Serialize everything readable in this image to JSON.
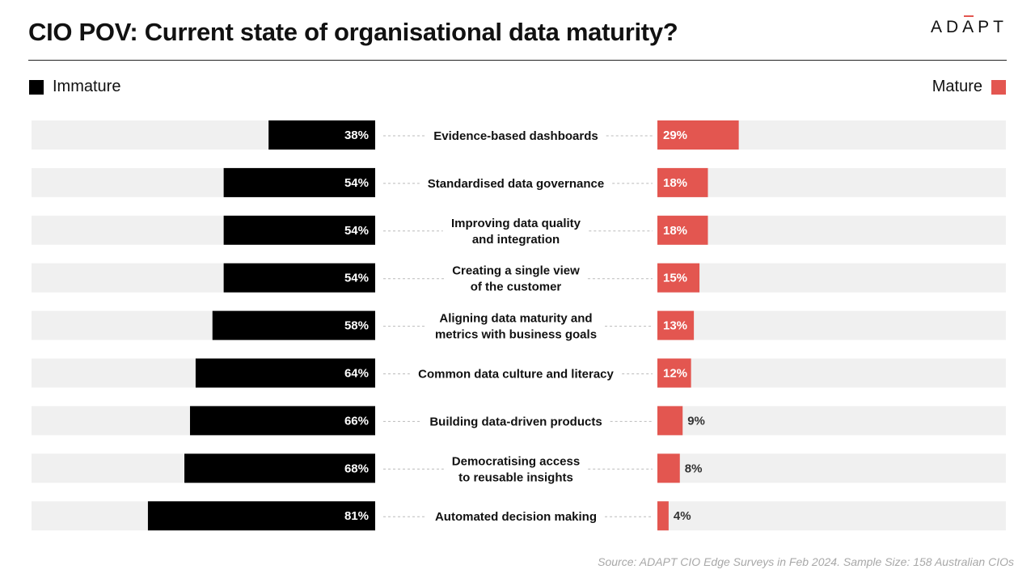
{
  "header": {
    "title": "CIO POV: Current state of organisational data maturity?",
    "logo_text": "ADAPT"
  },
  "legend": {
    "left_label": "Immature",
    "right_label": "Mature"
  },
  "colors": {
    "immature": "#000000",
    "mature": "#e35650",
    "track": "#f0f0f0",
    "connector": "#bbbbbb"
  },
  "chart_data": {
    "type": "bar",
    "orientation": "diverging-horizontal",
    "title": "CIO POV: Current state of organisational data maturity?",
    "categories": [
      [
        "Evidence-based dashboards"
      ],
      [
        "Standardised data governance"
      ],
      [
        "Improving data quality",
        "and integration"
      ],
      [
        "Creating a single view",
        "of the customer"
      ],
      [
        "Aligning data maturity and",
        "metrics with business goals"
      ],
      [
        "Common data culture and literacy"
      ],
      [
        "Building data-driven products"
      ],
      [
        "Democratising access",
        "to reusable insights"
      ],
      [
        "Automated decision making"
      ]
    ],
    "series": [
      {
        "name": "Immature",
        "color": "#000000",
        "values": [
          38,
          54,
          54,
          54,
          58,
          64,
          66,
          68,
          81
        ]
      },
      {
        "name": "Mature",
        "color": "#e35650",
        "values": [
          29,
          18,
          18,
          15,
          13,
          12,
          9,
          8,
          4
        ]
      }
    ],
    "value_suffix": "%",
    "legend_placement": "top",
    "grid": false
  },
  "footer": {
    "source": "Source: ADAPT CIO Edge Surveys in Feb 2024. Sample Size: 158 Australian CIOs"
  }
}
